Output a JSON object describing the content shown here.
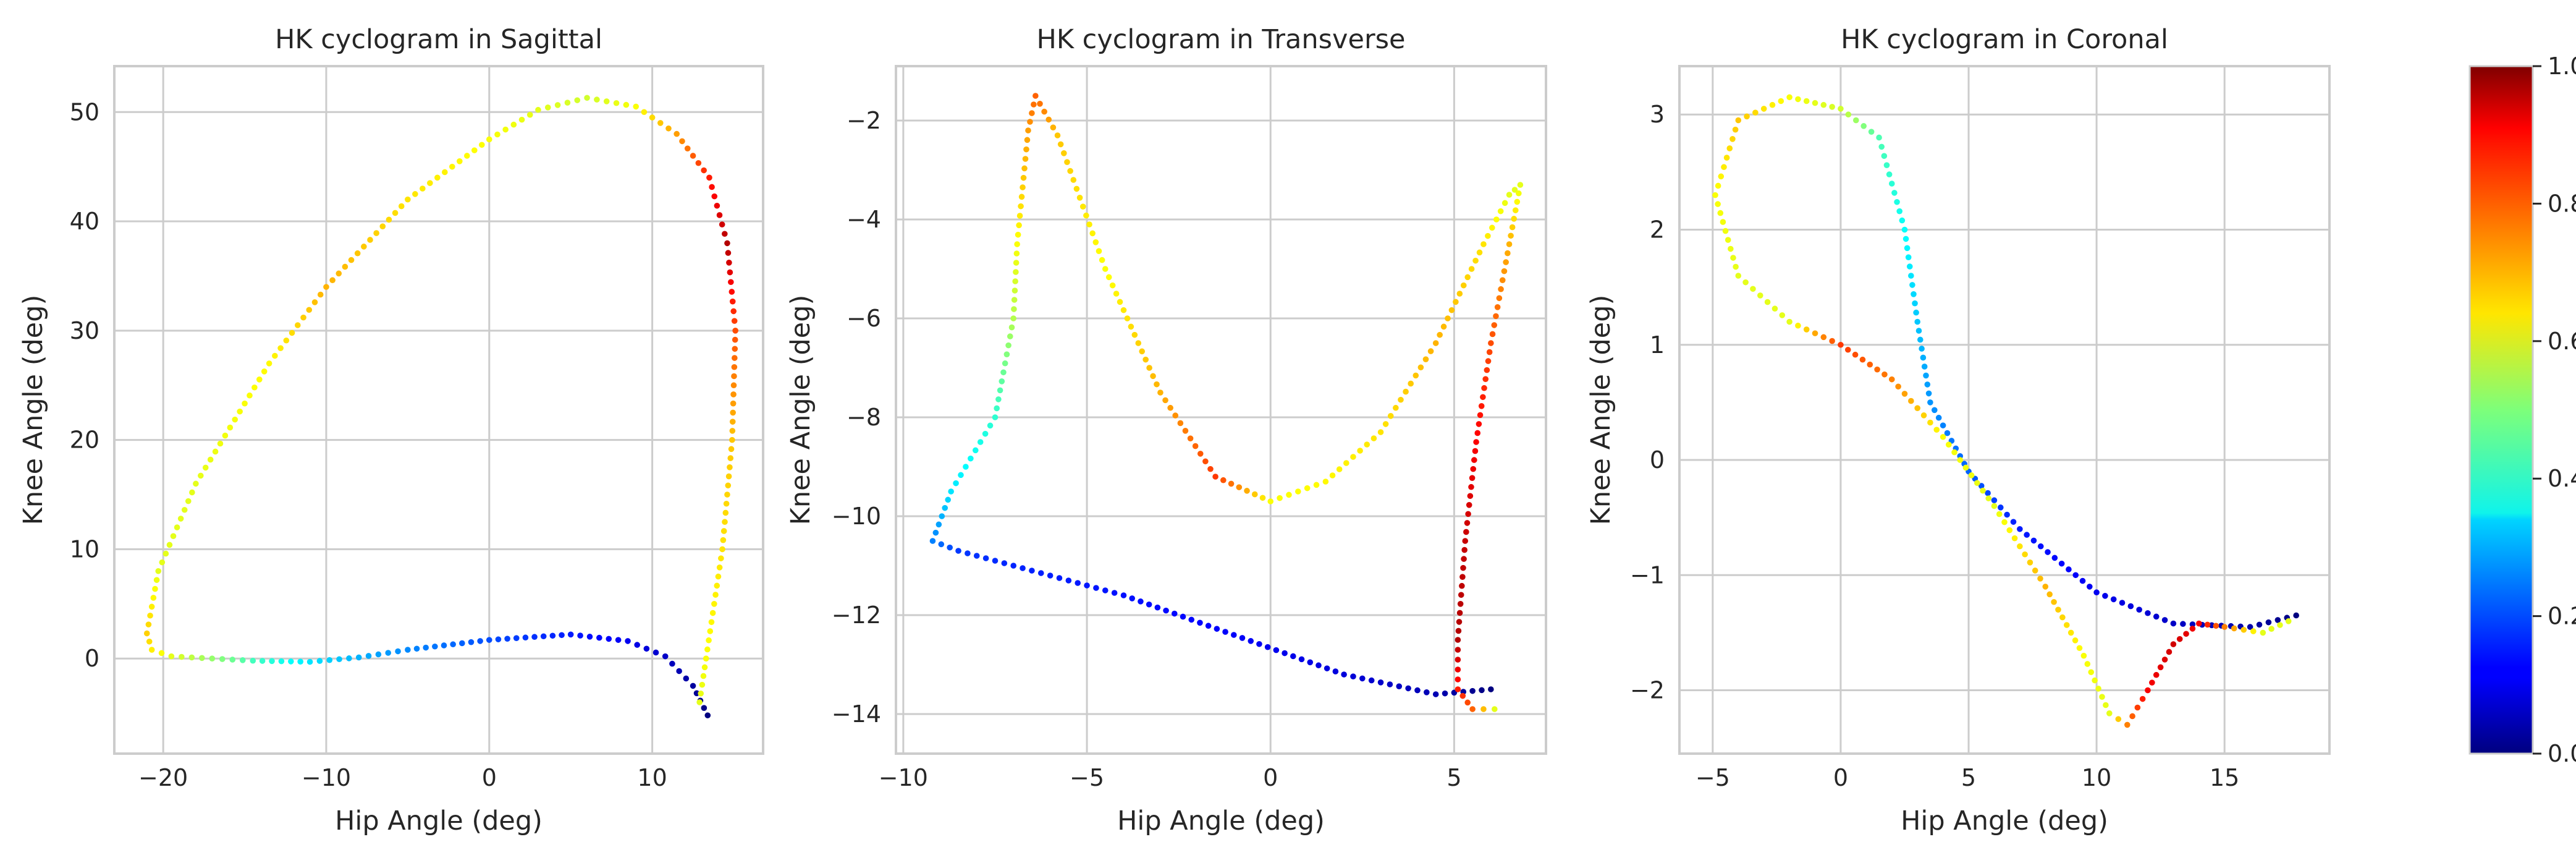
{
  "colormap": "jet",
  "colors": {
    "background": "#ffffff",
    "grid": "#cccccc",
    "text": "#262626"
  },
  "colorbar": {
    "ticks": [
      "0.0",
      "0.2",
      "0.4",
      "0.6",
      "0.8",
      "1.0"
    ],
    "range": [
      0,
      1
    ]
  },
  "chart_data": [
    {
      "type": "scatter",
      "title": "HK cyclogram in Sagittal",
      "xlabel": "Hip Angle (deg)",
      "ylabel": "Knee Angle (deg)",
      "xlim": [
        -23,
        16.8
      ],
      "ylim": [
        -8.7,
        54.2
      ],
      "xticks": [
        -20,
        -10,
        0,
        10
      ],
      "xtick_labels": [
        "−20",
        "−10",
        "0",
        "10"
      ],
      "yticks": [
        0,
        10,
        20,
        30,
        40,
        50
      ],
      "ytick_labels": [
        "0",
        "10",
        "20",
        "30",
        "40",
        "50"
      ],
      "grid": true,
      "color_by": "gait cycle fraction (0–1)",
      "path": [
        {
          "x": 13.4,
          "y": -5.2,
          "t": 0.0
        },
        {
          "x": 12.5,
          "y": -2.5,
          "t": 0.03
        },
        {
          "x": 10.8,
          "y": 0.2,
          "t": 0.07
        },
        {
          "x": 8.5,
          "y": 1.6,
          "t": 0.11
        },
        {
          "x": 5.0,
          "y": 2.2,
          "t": 0.15
        },
        {
          "x": 0.0,
          "y": 1.7,
          "t": 0.2
        },
        {
          "x": -5.0,
          "y": 0.8,
          "t": 0.26
        },
        {
          "x": -8.0,
          "y": 0.1,
          "t": 0.3
        },
        {
          "x": -11.0,
          "y": -0.3,
          "t": 0.35
        },
        {
          "x": -14.5,
          "y": -0.2,
          "t": 0.44
        },
        {
          "x": -17.0,
          "y": 0.0,
          "t": 0.52
        },
        {
          "x": -19.5,
          "y": 0.2,
          "t": 0.6
        },
        {
          "x": -20.7,
          "y": 0.8,
          "t": 0.64
        },
        {
          "x": -21.0,
          "y": 2.3,
          "t": 0.67
        },
        {
          "x": -20.3,
          "y": 8.0,
          "t": 0.6
        },
        {
          "x": -18.0,
          "y": 16.0,
          "t": 0.6
        },
        {
          "x": -13.5,
          "y": 27.0,
          "t": 0.63
        },
        {
          "x": -10.0,
          "y": 34.0,
          "t": 0.7
        },
        {
          "x": -5.0,
          "y": 42.0,
          "t": 0.65
        },
        {
          "x": 0.0,
          "y": 47.5,
          "t": 0.62
        },
        {
          "x": 3.0,
          "y": 50.2,
          "t": 0.6
        },
        {
          "x": 6.0,
          "y": 51.3,
          "t": 0.58
        },
        {
          "x": 9.0,
          "y": 50.5,
          "t": 0.62
        },
        {
          "x": 11.5,
          "y": 48.0,
          "t": 0.72
        },
        {
          "x": 13.5,
          "y": 44.0,
          "t": 0.85
        },
        {
          "x": 14.6,
          "y": 38.0,
          "t": 0.95
        },
        {
          "x": 15.1,
          "y": 30.0,
          "t": 0.8
        },
        {
          "x": 14.9,
          "y": 20.0,
          "t": 0.68
        },
        {
          "x": 14.3,
          "y": 10.0,
          "t": 0.65
        },
        {
          "x": 13.3,
          "y": 0.0,
          "t": 0.62
        },
        {
          "x": 12.9,
          "y": -4.0,
          "t": 0.6
        }
      ]
    },
    {
      "type": "scatter",
      "title": "HK cyclogram in Transverse",
      "xlabel": "Hip Angle (deg)",
      "ylabel": "Knee Angle (deg)",
      "xlim": [
        -10.2,
        7.5
      ],
      "ylim": [
        -14.8,
        -0.9
      ],
      "xticks": [
        -10,
        -5,
        0,
        5
      ],
      "xtick_labels": [
        "−10",
        "−5",
        "0",
        "5"
      ],
      "yticks": [
        -14,
        -12,
        -10,
        -8,
        -6,
        -4,
        -2
      ],
      "ytick_labels": [
        "−14",
        "−12",
        "−10",
        "−8",
        "−6",
        "−4",
        "−2"
      ],
      "grid": true,
      "color_by": "gait cycle fraction (0–1)",
      "path": [
        {
          "x": 6.0,
          "y": -13.5,
          "t": 0.0
        },
        {
          "x": 4.5,
          "y": -13.6,
          "t": 0.05
        },
        {
          "x": 2.0,
          "y": -13.2,
          "t": 0.09
        },
        {
          "x": -1.0,
          "y": -12.4,
          "t": 0.12
        },
        {
          "x": -4.0,
          "y": -11.6,
          "t": 0.14
        },
        {
          "x": -7.0,
          "y": -11.0,
          "t": 0.16
        },
        {
          "x": -8.5,
          "y": -10.7,
          "t": 0.18
        },
        {
          "x": -9.2,
          "y": -10.5,
          "t": 0.25
        },
        {
          "x": -8.7,
          "y": -9.5,
          "t": 0.35
        },
        {
          "x": -7.5,
          "y": -8.0,
          "t": 0.42
        },
        {
          "x": -7.0,
          "y": -6.0,
          "t": 0.55
        },
        {
          "x": -6.9,
          "y": -4.5,
          "t": 0.62
        },
        {
          "x": -6.6,
          "y": -2.2,
          "t": 0.72
        },
        {
          "x": -6.4,
          "y": -1.5,
          "t": 0.78
        },
        {
          "x": -5.8,
          "y": -2.3,
          "t": 0.68
        },
        {
          "x": -4.5,
          "y": -5.0,
          "t": 0.62
        },
        {
          "x": -3.0,
          "y": -7.5,
          "t": 0.7
        },
        {
          "x": -1.5,
          "y": -9.2,
          "t": 0.82
        },
        {
          "x": 0.0,
          "y": -9.7,
          "t": 0.62
        },
        {
          "x": 1.5,
          "y": -9.3,
          "t": 0.63
        },
        {
          "x": 3.0,
          "y": -8.3,
          "t": 0.65
        },
        {
          "x": 4.5,
          "y": -6.5,
          "t": 0.7
        },
        {
          "x": 5.8,
          "y": -4.5,
          "t": 0.65
        },
        {
          "x": 6.5,
          "y": -3.5,
          "t": 0.6
        },
        {
          "x": 6.8,
          "y": -3.3,
          "t": 0.6
        },
        {
          "x": 6.5,
          "y": -4.5,
          "t": 0.7
        },
        {
          "x": 6.0,
          "y": -6.5,
          "t": 0.8
        },
        {
          "x": 5.6,
          "y": -8.5,
          "t": 0.88
        },
        {
          "x": 5.3,
          "y": -10.5,
          "t": 0.93
        },
        {
          "x": 5.1,
          "y": -12.5,
          "t": 0.95
        },
        {
          "x": 5.1,
          "y": -13.5,
          "t": 0.85
        },
        {
          "x": 5.5,
          "y": -13.9,
          "t": 0.78
        },
        {
          "x": 6.1,
          "y": -13.9,
          "t": 0.6
        }
      ]
    },
    {
      "type": "scatter",
      "title": "HK cyclogram in Coronal",
      "xlabel": "Hip Angle (deg)",
      "ylabel": "Knee Angle (deg)",
      "xlim": [
        -6.3,
        19.1
      ],
      "ylim": [
        -2.55,
        3.42
      ],
      "xticks": [
        -5,
        0,
        5,
        10,
        15
      ],
      "xtick_labels": [
        "−5",
        "0",
        "5",
        "10",
        "15"
      ],
      "yticks": [
        -2,
        -1,
        0,
        1,
        2,
        3
      ],
      "ytick_labels": [
        "−2",
        "−1",
        "0",
        "1",
        "2",
        "3"
      ],
      "grid": true,
      "color_by": "gait cycle fraction (0–1)",
      "path": [
        {
          "x": 17.8,
          "y": -1.35,
          "t": 0.0
        },
        {
          "x": 16.0,
          "y": -1.45,
          "t": 0.04
        },
        {
          "x": 13.0,
          "y": -1.42,
          "t": 0.07
        },
        {
          "x": 10.0,
          "y": -1.15,
          "t": 0.11
        },
        {
          "x": 7.0,
          "y": -0.6,
          "t": 0.15
        },
        {
          "x": 5.0,
          "y": -0.1,
          "t": 0.22
        },
        {
          "x": 3.5,
          "y": 0.5,
          "t": 0.27
        },
        {
          "x": 3.0,
          "y": 1.2,
          "t": 0.32
        },
        {
          "x": 2.5,
          "y": 2.0,
          "t": 0.38
        },
        {
          "x": 1.5,
          "y": 2.8,
          "t": 0.45
        },
        {
          "x": 0.0,
          "y": 3.05,
          "t": 0.58
        },
        {
          "x": -2.0,
          "y": 3.15,
          "t": 0.62
        },
        {
          "x": -4.0,
          "y": 2.95,
          "t": 0.68
        },
        {
          "x": -4.9,
          "y": 2.3,
          "t": 0.62
        },
        {
          "x": -4.0,
          "y": 1.6,
          "t": 0.6
        },
        {
          "x": -2.0,
          "y": 1.2,
          "t": 0.6
        },
        {
          "x": 0.0,
          "y": 1.0,
          "t": 0.82
        },
        {
          "x": 2.0,
          "y": 0.7,
          "t": 0.75
        },
        {
          "x": 4.0,
          "y": 0.2,
          "t": 0.62
        },
        {
          "x": 6.0,
          "y": -0.4,
          "t": 0.6
        },
        {
          "x": 8.0,
          "y": -1.1,
          "t": 0.7
        },
        {
          "x": 9.5,
          "y": -1.7,
          "t": 0.62
        },
        {
          "x": 10.5,
          "y": -2.2,
          "t": 0.6
        },
        {
          "x": 11.2,
          "y": -2.3,
          "t": 0.75
        },
        {
          "x": 12.0,
          "y": -2.0,
          "t": 0.88
        },
        {
          "x": 13.0,
          "y": -1.6,
          "t": 0.92
        },
        {
          "x": 14.0,
          "y": -1.42,
          "t": 0.88
        },
        {
          "x": 15.0,
          "y": -1.45,
          "t": 0.75
        },
        {
          "x": 16.5,
          "y": -1.5,
          "t": 0.6
        },
        {
          "x": 17.5,
          "y": -1.4,
          "t": 0.6
        }
      ]
    }
  ]
}
